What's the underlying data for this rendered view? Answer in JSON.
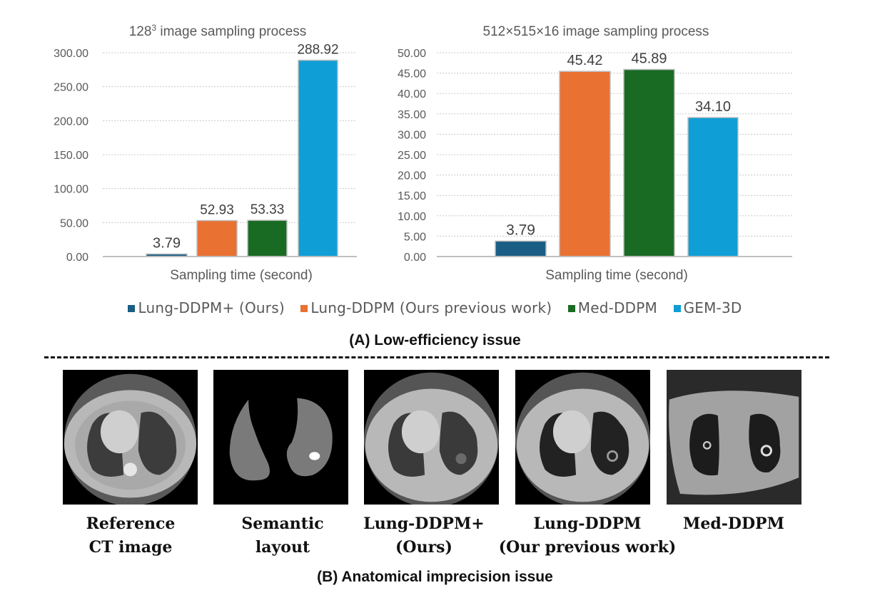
{
  "figure": {
    "section_a_title": "(A) Low-efficiency issue",
    "section_b_title": "(B) Anatomical imprecision issue"
  },
  "legend": [
    {
      "label": "Lung-DDPM+ (Ours)",
      "color": "#1b5e85"
    },
    {
      "label": "Lung-DDPM (Ours previous work)",
      "color": "#e97132"
    },
    {
      "label": "Med-DDPM",
      "color": "#196b24"
    },
    {
      "label": "GEM-3D",
      "color": "#0f9ed5"
    }
  ],
  "chart_data": [
    {
      "type": "bar",
      "title_base": "128",
      "title_sup": "3",
      "title_rest": " image sampling process",
      "title": "128³ image sampling process",
      "xlabel": "Sampling time (second)",
      "ylabel": "",
      "ylim": [
        0,
        300
      ],
      "yticks": [
        "0.00",
        "50.00",
        "100.00",
        "150.00",
        "200.00",
        "250.00",
        "300.00"
      ],
      "ytick_values": [
        0,
        50,
        100,
        150,
        200,
        250,
        300
      ],
      "grid": true,
      "series": [
        {
          "name": "Lung-DDPM+ (Ours)",
          "value": 3.79,
          "label": "3.79",
          "color": "#1b5e85"
        },
        {
          "name": "Lung-DDPM (Ours previous work)",
          "value": 52.93,
          "label": "52.93",
          "color": "#e97132"
        },
        {
          "name": "Med-DDPM",
          "value": 53.33,
          "label": "53.33",
          "color": "#196b24"
        },
        {
          "name": "GEM-3D",
          "value": 288.92,
          "label": "288.92",
          "color": "#0f9ed5"
        }
      ],
      "legend_position": "bottom"
    },
    {
      "type": "bar",
      "title": "512×515×16 image sampling process",
      "xlabel": "Sampling time (second)",
      "ylabel": "",
      "ylim": [
        0,
        50
      ],
      "yticks": [
        "0.00",
        "5.00",
        "10.00",
        "15.00",
        "20.00",
        "25.00",
        "30.00",
        "35.00",
        "40.00",
        "45.00",
        "50.00"
      ],
      "ytick_values": [
        0,
        5,
        10,
        15,
        20,
        25,
        30,
        35,
        40,
        45,
        50
      ],
      "grid": true,
      "series": [
        {
          "name": "Lung-DDPM+ (Ours)",
          "value": 3.79,
          "label": "3.79",
          "color": "#1b5e85"
        },
        {
          "name": "Lung-DDPM (Ours previous work)",
          "value": 45.42,
          "label": "45.42",
          "color": "#e97132"
        },
        {
          "name": "Med-DDPM",
          "value": 45.89,
          "label": "45.89",
          "color": "#196b24"
        },
        {
          "name": "GEM-3D",
          "value": 34.1,
          "label": "34.10",
          "color": "#0f9ed5"
        }
      ],
      "legend_position": "bottom"
    }
  ],
  "images": [
    {
      "name": "reference-ct",
      "caption_line1": "Reference",
      "caption_line2": "CT image"
    },
    {
      "name": "semantic-layout",
      "caption_line1": "Semantic",
      "caption_line2": "layout"
    },
    {
      "name": "lung-ddpm-plus",
      "caption_line1": "Lung-DDPM+",
      "caption_line2": "(Ours)"
    },
    {
      "name": "lung-ddpm",
      "caption_line1": "Lung-DDPM",
      "caption_line2": "(Our previous work)"
    },
    {
      "name": "med-ddpm",
      "caption_line1": "Med-DDPM",
      "caption_line2": ""
    }
  ]
}
